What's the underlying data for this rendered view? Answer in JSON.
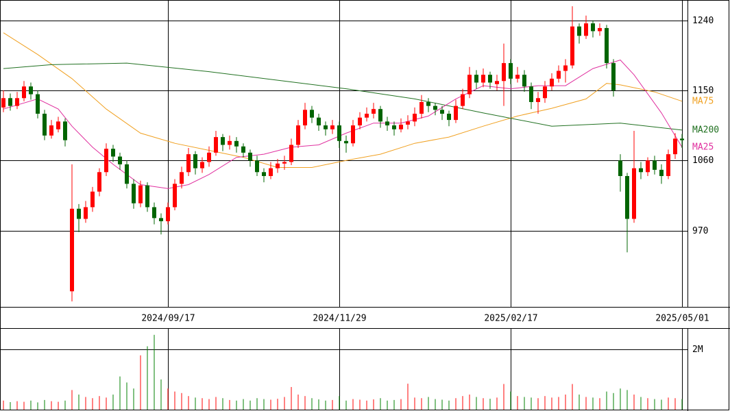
{
  "chart_data": [
    {
      "type": "candlestick",
      "xlim": [
        -0.5,
        99.8
      ],
      "xticks": [
        {
          "value": 24,
          "label": "2024/09/17"
        },
        {
          "value": 49,
          "label": "2024/11/29"
        },
        {
          "value": 74,
          "label": "2025/02/17"
        },
        {
          "value": 99,
          "label": "2025/05/01"
        }
      ],
      "ylim": [
        872,
        1266
      ],
      "yticks": [
        970,
        1060,
        1150,
        1240
      ],
      "grid": true,
      "up_color": "#ff0000",
      "down_color": "#006400",
      "ohlc": [
        [
          1128,
          1150,
          1122,
          1140
        ],
        [
          1140,
          1146,
          1124,
          1130
        ],
        [
          1130,
          1148,
          1126,
          1140
        ],
        [
          1140,
          1162,
          1136,
          1155
        ],
        [
          1155,
          1160,
          1138,
          1145
        ],
        [
          1145,
          1150,
          1114,
          1120
        ],
        [
          1120,
          1125,
          1086,
          1092
        ],
        [
          1092,
          1112,
          1088,
          1105
        ],
        [
          1100,
          1116,
          1096,
          1110
        ],
        [
          1110,
          1114,
          1078,
          1086
        ],
        [
          892,
          1055,
          879,
          998
        ],
        [
          998,
          1004,
          968,
          985
        ],
        [
          985,
          1008,
          980,
          1000
        ],
        [
          1000,
          1026,
          994,
          1020
        ],
        [
          1020,
          1050,
          1014,
          1045
        ],
        [
          1045,
          1082,
          1040,
          1075
        ],
        [
          1075,
          1080,
          1058,
          1065
        ],
        [
          1065,
          1070,
          1048,
          1055
        ],
        [
          1055,
          1060,
          1024,
          1030
        ],
        [
          1030,
          1036,
          998,
          1005
        ],
        [
          1005,
          1034,
          1000,
          1028
        ],
        [
          1028,
          1032,
          994,
          1000
        ],
        [
          1000,
          1006,
          978,
          986
        ],
        [
          986,
          992,
          965,
          982
        ],
        [
          982,
          1006,
          978,
          1000
        ],
        [
          1000,
          1036,
          996,
          1030
        ],
        [
          1030,
          1052,
          1024,
          1045
        ],
        [
          1045,
          1076,
          1040,
          1068
        ],
        [
          1068,
          1072,
          1042,
          1050
        ],
        [
          1050,
          1064,
          1044,
          1058
        ],
        [
          1058,
          1078,
          1052,
          1070
        ],
        [
          1070,
          1098,
          1066,
          1090
        ],
        [
          1090,
          1094,
          1072,
          1080
        ],
        [
          1080,
          1092,
          1074,
          1085
        ],
        [
          1085,
          1090,
          1070,
          1078
        ],
        [
          1078,
          1082,
          1064,
          1070
        ],
        [
          1070,
          1074,
          1052,
          1060
        ],
        [
          1060,
          1066,
          1040,
          1045
        ],
        [
          1045,
          1050,
          1032,
          1040
        ],
        [
          1040,
          1058,
          1036,
          1050
        ],
        [
          1050,
          1062,
          1044,
          1056
        ],
        [
          1056,
          1066,
          1048,
          1058
        ],
        [
          1058,
          1088,
          1054,
          1080
        ],
        [
          1080,
          1112,
          1076,
          1105
        ],
        [
          1105,
          1134,
          1100,
          1125
        ],
        [
          1125,
          1130,
          1108,
          1115
        ],
        [
          1115,
          1120,
          1098,
          1105
        ],
        [
          1105,
          1110,
          1092,
          1100
        ],
        [
          1100,
          1112,
          1094,
          1105
        ],
        [
          1105,
          1110,
          1076,
          1085
        ],
        [
          1085,
          1092,
          1070,
          1082
        ],
        [
          1082,
          1112,
          1078,
          1105
        ],
        [
          1105,
          1122,
          1100,
          1115
        ],
        [
          1115,
          1128,
          1110,
          1120
        ],
        [
          1120,
          1134,
          1114,
          1126
        ],
        [
          1126,
          1130,
          1102,
          1110
        ],
        [
          1110,
          1116,
          1098,
          1105
        ],
        [
          1105,
          1110,
          1092,
          1100
        ],
        [
          1100,
          1114,
          1096,
          1106
        ],
        [
          1106,
          1118,
          1100,
          1110
        ],
        [
          1110,
          1128,
          1104,
          1120
        ],
        [
          1120,
          1144,
          1114,
          1135
        ],
        [
          1135,
          1140,
          1122,
          1130
        ],
        [
          1130,
          1134,
          1118,
          1125
        ],
        [
          1125,
          1130,
          1112,
          1120
        ],
        [
          1120,
          1124,
          1104,
          1112
        ],
        [
          1112,
          1138,
          1108,
          1130
        ],
        [
          1130,
          1152,
          1126,
          1145
        ],
        [
          1145,
          1180,
          1140,
          1170
        ],
        [
          1170,
          1176,
          1152,
          1160
        ],
        [
          1160,
          1178,
          1154,
          1170
        ],
        [
          1170,
          1174,
          1152,
          1160
        ],
        [
          1158,
          1170,
          1150,
          1162
        ],
        [
          1162,
          1210,
          1130,
          1185
        ],
        [
          1185,
          1190,
          1158,
          1165
        ],
        [
          1165,
          1180,
          1160,
          1170
        ],
        [
          1170,
          1176,
          1148,
          1155
        ],
        [
          1155,
          1160,
          1126,
          1135
        ],
        [
          1135,
          1148,
          1120,
          1140
        ],
        [
          1140,
          1162,
          1134,
          1155
        ],
        [
          1155,
          1172,
          1150,
          1165
        ],
        [
          1165,
          1182,
          1160,
          1175
        ],
        [
          1175,
          1190,
          1160,
          1182
        ],
        [
          1182,
          1258,
          1178,
          1232
        ],
        [
          1232,
          1236,
          1210,
          1220
        ],
        [
          1220,
          1246,
          1216,
          1236
        ],
        [
          1236,
          1240,
          1218,
          1226
        ],
        [
          1226,
          1236,
          1220,
          1230
        ],
        [
          1230,
          1234,
          1178,
          1185
        ],
        [
          1185,
          1190,
          1142,
          1150
        ],
        [
          1060,
          1068,
          1020,
          1040
        ],
        [
          1040,
          1044,
          942,
          985
        ],
        [
          985,
          1098,
          980,
          1050
        ],
        [
          1050,
          1058,
          1036,
          1045
        ],
        [
          1045,
          1064,
          1040,
          1060
        ],
        [
          1060,
          1066,
          1042,
          1048
        ],
        [
          1048,
          1055,
          1030,
          1040
        ],
        [
          1040,
          1074,
          1036,
          1068
        ],
        [
          1068,
          1095,
          1062,
          1088
        ],
        [
          1088,
          1094,
          1076,
          1086
        ]
      ],
      "series": [
        {
          "name": "MA75",
          "color": "#f0a020",
          "x": [
            0,
            5,
            10,
            15,
            20,
            25,
            30,
            35,
            40,
            45,
            50,
            55,
            60,
            65,
            70,
            75,
            80,
            85,
            88,
            90,
            95,
            99
          ],
          "values": [
            1224,
            1196,
            1165,
            1126,
            1095,
            1082,
            1073,
            1064,
            1051,
            1051,
            1060,
            1068,
            1082,
            1090,
            1104,
            1117,
            1127,
            1139,
            1159,
            1157,
            1148,
            1136
          ]
        },
        {
          "name": "MA200",
          "color": "#207020",
          "x": [
            0,
            7,
            18,
            30,
            40,
            50,
            60,
            70,
            80,
            90,
            99
          ],
          "values": [
            1178,
            1183,
            1185,
            1174,
            1163,
            1152,
            1139,
            1121,
            1104,
            1108,
            1099
          ]
        },
        {
          "name": "MA25",
          "color": "#e0309f",
          "x": [
            0,
            5,
            8,
            10,
            13,
            16,
            20,
            24,
            27,
            30,
            34,
            38,
            42,
            46,
            50,
            54,
            58,
            62,
            66,
            70,
            74,
            78,
            82,
            86,
            90,
            92,
            96,
            99
          ],
          "values": [
            1126,
            1139,
            1126,
            1104,
            1077,
            1055,
            1029,
            1024,
            1029,
            1042,
            1064,
            1068,
            1077,
            1080,
            1095,
            1108,
            1108,
            1117,
            1139,
            1156,
            1152,
            1156,
            1156,
            1178,
            1189,
            1170,
            1121,
            1077
          ]
        }
      ]
    },
    {
      "type": "bar",
      "ylim": [
        0,
        2680000
      ],
      "yticks": [
        {
          "value": 2000000,
          "label": "2M"
        }
      ],
      "grid": true,
      "color": "#008000",
      "alt_color": "#ff0000",
      "values": [
        300000,
        250000,
        280000,
        260000,
        300000,
        240000,
        320000,
        280000,
        260000,
        300000,
        650000,
        500000,
        420000,
        380000,
        450000,
        400000,
        500000,
        1100000,
        900000,
        700000,
        1800000,
        2100000,
        2480000,
        1000000,
        700000,
        600000,
        550000,
        450000,
        400000,
        380000,
        350000,
        420000,
        380000,
        320000,
        300000,
        350000,
        300000,
        380000,
        350000,
        330000,
        360000,
        420000,
        750000,
        500000,
        450000,
        380000,
        340000,
        300000,
        320000,
        450000,
        300000,
        350000,
        330000,
        300000,
        340000,
        380000,
        300000,
        320000,
        350000,
        860000,
        400000,
        380000,
        420000,
        350000,
        330000,
        300000,
        380000,
        450000,
        500000,
        420000,
        380000,
        360000,
        400000,
        850000,
        600000,
        450000,
        420000,
        400000,
        380000,
        450000,
        400000,
        420000,
        500000,
        850000,
        500000,
        420000,
        400000,
        380000,
        600000,
        550000,
        700000,
        650000,
        500000,
        420000,
        380000,
        350000,
        330000,
        400000,
        380000,
        350000
      ]
    }
  ]
}
